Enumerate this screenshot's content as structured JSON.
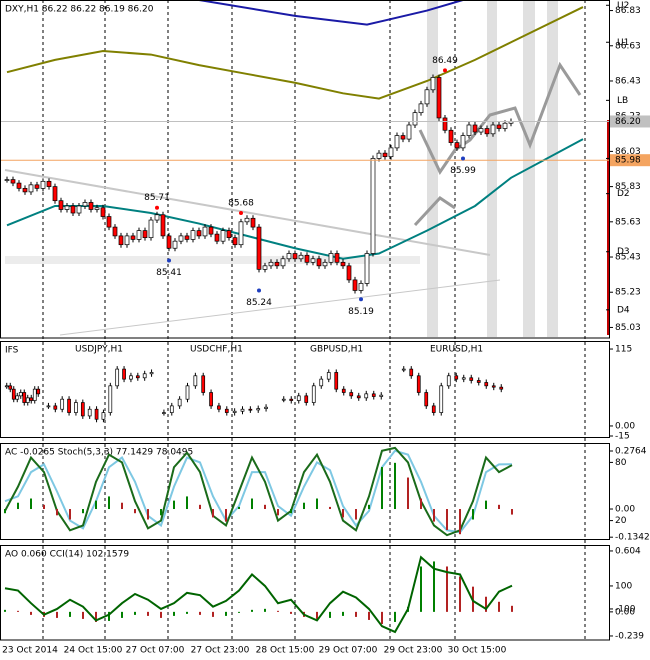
{
  "chart_data": [
    {
      "type": "candlestick",
      "title": "DXY,H1  86.22 86.22 86.19 86.20",
      "ylim": [
        84.97,
        86.89
      ],
      "yticks": [
        86.83,
        86.63,
        86.43,
        86.23,
        86.03,
        85.83,
        85.63,
        85.43,
        85.23,
        85.03
      ],
      "closes": [
        85.87,
        85.85,
        85.82,
        85.8,
        85.84,
        85.82,
        85.86,
        85.83,
        85.75,
        85.7,
        85.72,
        85.68,
        85.72,
        85.74,
        85.7,
        85.71,
        85.66,
        85.6,
        85.55,
        85.5,
        85.55,
        85.53,
        85.58,
        85.54,
        85.64,
        85.67,
        85.55,
        85.48,
        85.52,
        85.55,
        85.53,
        85.58,
        85.55,
        85.6,
        85.56,
        85.52,
        85.58,
        85.54,
        85.5,
        85.63,
        85.65,
        85.6,
        85.36,
        85.38,
        85.4,
        85.38,
        85.42,
        85.45,
        85.42,
        85.44,
        85.4,
        85.42,
        85.38,
        85.4,
        85.45,
        85.4,
        85.38,
        85.3,
        85.24,
        85.28,
        85.45,
        85.99,
        86.02,
        86,
        86.05,
        86.12,
        86.1,
        86.18,
        86.25,
        86.3,
        86.38,
        86.45,
        86.22,
        86.15,
        86.08,
        86.05,
        86.12,
        86.18,
        86.14,
        86.16,
        86.13,
        86.18,
        86.16,
        86.19,
        86.2
      ],
      "up_color": "#ffffff",
      "down_color": "#ff0000",
      "overlays": [
        {
          "color": "#008080",
          "x": [
            0,
            8,
            16,
            24,
            32,
            40,
            48,
            56,
            62,
            70,
            78,
            84,
            96
          ],
          "values": [
            85.61,
            85.72,
            85.72,
            85.68,
            85.62,
            85.55,
            85.48,
            85.42,
            85.45,
            85.58,
            85.72,
            85.88,
            86.1
          ]
        },
        {
          "color": "#808000",
          "x": [
            0,
            8,
            16,
            24,
            32,
            40,
            48,
            56,
            62,
            70,
            78,
            84,
            96
          ],
          "values": [
            86.48,
            86.55,
            86.6,
            86.58,
            86.52,
            86.47,
            86.42,
            86.36,
            86.33,
            86.43,
            86.55,
            86.65,
            86.85
          ]
        },
        {
          "color": "#1a1aa6",
          "x": [
            32,
            48,
            60,
            70,
            76
          ],
          "values": [
            86.89,
            86.8,
            86.75,
            86.83,
            86.89
          ]
        }
      ],
      "pivots": [
        {
          "label": "U2",
          "value": 86.86
        },
        {
          "label": "U1",
          "value": 86.65
        },
        {
          "label": "LB",
          "value": 86.32
        },
        {
          "label": "D1",
          "value": 85.99
        },
        {
          "label": "D2",
          "value": 85.79
        },
        {
          "label": "D3",
          "value": 85.46
        },
        {
          "label": "D4",
          "value": 85.13
        }
      ],
      "last_price": {
        "value": 86.2,
        "label": "86.20"
      },
      "alert_line": {
        "value": 85.98,
        "label": "85.98",
        "color": "#f4a460"
      },
      "annotations": [
        {
          "x": 73,
          "value": 86.49
        },
        {
          "x": 25,
          "value": 85.71
        },
        {
          "x": 39,
          "value": 85.68
        },
        {
          "x": 27,
          "value": 85.41
        },
        {
          "x": 42,
          "value": 85.24
        },
        {
          "x": 59,
          "value": 85.19
        },
        {
          "x": 76,
          "value": 85.99
        }
      ]
    },
    {
      "type": "multi-candlestick",
      "title": "IFS",
      "ylim": [
        -18,
        127
      ],
      "yticks": [
        115,
        {
          "value": 0,
          "label": "0.00"
        },
        -15
      ],
      "panels": [
        {
          "values": [
            60,
            55,
            40,
            45,
            50,
            35,
            42,
            38,
            55,
            48
          ]
        },
        {
          "name": "USDJPY,H1",
          "values": [
            30,
            25,
            40,
            20,
            35,
            15,
            25,
            10,
            20,
            60,
            85,
            70,
            75,
            72,
            78,
            80
          ]
        },
        {
          "name": "USDCHF,H1",
          "values": [
            20,
            30,
            40,
            60,
            75,
            50,
            30,
            25,
            20,
            22,
            25,
            24,
            26,
            28
          ]
        },
        {
          "name": "GBPUSD,H1",
          "values": [
            40,
            38,
            45,
            35,
            60,
            70,
            80,
            55,
            50,
            45,
            42,
            48,
            44,
            46
          ]
        },
        {
          "name": "EURUSD,H1",
          "values": [
            85,
            75,
            50,
            30,
            20,
            60,
            75,
            70,
            72,
            68,
            65,
            60,
            58,
            55
          ]
        }
      ]
    },
    {
      "type": "oscillator",
      "title": "AC -0.0265  Stoch(5,3,3) 77.1429 78.0495",
      "ylim": [
        0,
        100
      ],
      "yticks": [
        80,
        20
      ],
      "y2lim": [
        -0.1476,
        0.3145
      ],
      "y2ticks": [
        0.2764,
        {
          "value": 0,
          "label": "0.00"
        },
        -0.1342
      ],
      "series": [
        {
          "color": "#7ec8e3",
          "values": [
            40,
            45,
            70,
            78,
            50,
            20,
            12,
            40,
            75,
            85,
            60,
            25,
            15,
            55,
            85,
            80,
            45,
            20,
            35,
            70,
            70,
            35,
            25,
            55,
            80,
            72,
            35,
            15,
            30,
            75,
            92,
            88,
            60,
            25,
            10,
            8,
            25,
            70,
            78,
            78.0495
          ]
        },
        {
          "color": "#1a6b1a",
          "values": [
            30,
            55,
            85,
            70,
            30,
            10,
            15,
            60,
            88,
            80,
            40,
            12,
            20,
            75,
            90,
            70,
            25,
            15,
            50,
            85,
            60,
            20,
            30,
            70,
            88,
            60,
            20,
            10,
            45,
            92,
            95,
            80,
            40,
            15,
            5,
            10,
            40,
            85,
            70,
            77.1429
          ]
        },
        {
          "axis": "y2",
          "up_color": "#008000",
          "down_color": "#b22222",
          "values": [
            -0.02,
            0.03,
            0.05,
            0.02,
            -0.03,
            -0.05,
            -0.02,
            0.04,
            0.06,
            0.03,
            -0.02,
            -0.05,
            -0.03,
            0.04,
            0.06,
            0.02,
            -0.04,
            -0.06,
            0.01,
            0.05,
            0.02,
            -0.03,
            -0.02,
            0.03,
            0.05,
            0.01,
            -0.04,
            -0.05,
            0.02,
            0.2,
            0.22,
            0.15,
            0.05,
            -0.06,
            -0.1,
            -0.12,
            -0.05,
            0.04,
            0.02,
            -0.0265
          ]
        }
      ]
    },
    {
      "type": "oscillator",
      "title": "AO 0.060  CCI(14) 102.1579",
      "ylim": [
        -370,
        456
      ],
      "yticks": [
        100,
        -100
      ],
      "y2lim": [
        -0.279,
        0.663
      ],
      "y2ticks": [
        0.604,
        {
          "value": 0,
          "label": "0.00"
        },
        -0.239
      ],
      "series": [
        {
          "axis": "y2",
          "up_color": "#008000",
          "down_color": "#b22222",
          "values": [
            0.02,
            0.01,
            -0.03,
            -0.05,
            -0.06,
            -0.05,
            -0.07,
            -0.1,
            -0.09,
            -0.06,
            -0.03,
            -0.04,
            -0.06,
            -0.04,
            -0.02,
            -0.03,
            -0.05,
            -0.04,
            -0.01,
            0.02,
            0.03,
            0.01,
            -0.02,
            -0.05,
            -0.07,
            -0.06,
            -0.04,
            -0.05,
            -0.08,
            -0.12,
            -0.1,
            0.05,
            0.45,
            0.5,
            0.45,
            0.35,
            0.25,
            0.15,
            0.1,
            0.06
          ]
        },
        {
          "color": "#006400",
          "values": [
            80,
            60,
            -50,
            -150,
            -100,
            -20,
            -80,
            -200,
            -150,
            -50,
            30,
            -20,
            -100,
            -50,
            40,
            20,
            -80,
            -30,
            60,
            200,
            100,
            -50,
            -20,
            -150,
            -200,
            -50,
            50,
            0,
            -100,
            -250,
            -300,
            -100,
            350,
            250,
            220,
            200,
            -30,
            -100,
            50,
            102.1579
          ]
        }
      ]
    }
  ],
  "time_axis": {
    "labels": [
      "23 Oct 2014",
      "24 Oct 15:00",
      "27 Oct 07:00",
      "27 Oct 23:00",
      "28 Oct 15:00",
      "29 Oct 07:00",
      "29 Oct 23:00",
      "30 Oct 15:00"
    ]
  }
}
